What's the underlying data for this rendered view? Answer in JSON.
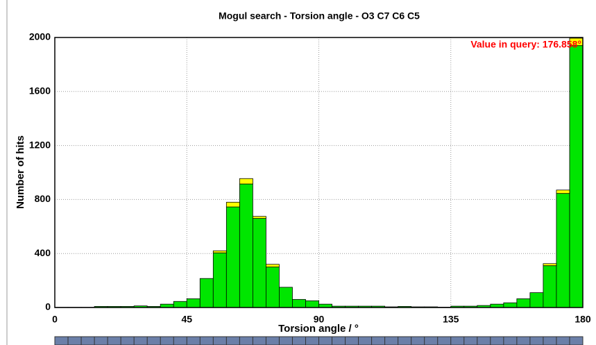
{
  "chart_data": {
    "type": "histogram",
    "title": "Mogul search - Torsion angle - O3 C7 C6 C5",
    "xlabel": "Torsion angle / °",
    "ylabel": "Number of hits",
    "annotation": "Value in query: 176.858°",
    "bins": [
      0,
      4.5,
      9,
      13.5,
      18,
      22.5,
      27,
      31.5,
      36,
      40.5,
      45,
      49.5,
      54,
      58.5,
      63,
      67.5,
      72,
      76.5,
      81,
      85.5,
      90,
      94.5,
      99,
      103.5,
      108,
      112.5,
      117,
      121.5,
      126,
      130.5,
      135,
      139.5,
      144,
      148.5,
      153,
      157.5,
      162,
      166.5,
      171,
      175.5,
      180
    ],
    "series": [
      {
        "color": "#00e600",
        "values": [
          2,
          2,
          2,
          8,
          8,
          8,
          12,
          8,
          25,
          45,
          65,
          215,
          405,
          745,
          915,
          660,
          300,
          150,
          60,
          50,
          25,
          10,
          10,
          10,
          10,
          5,
          8,
          5,
          5,
          3,
          10,
          10,
          15,
          25,
          35,
          65,
          110,
          310,
          845,
          1940
        ]
      },
      {
        "color": "#ffff00",
        "values": [
          0,
          0,
          0,
          0,
          0,
          0,
          0,
          0,
          0,
          0,
          0,
          0,
          15,
          35,
          40,
          15,
          20,
          0,
          0,
          0,
          0,
          0,
          0,
          0,
          0,
          0,
          0,
          0,
          0,
          0,
          0,
          0,
          0,
          0,
          0,
          0,
          0,
          15,
          25,
          55
        ]
      }
    ],
    "xlim": [
      0,
      180
    ],
    "xticks": [
      0,
      45,
      90,
      135,
      180
    ],
    "ylim": [
      0,
      2000
    ],
    "yticks": [
      0,
      400,
      800,
      1200,
      1600,
      2000
    ],
    "grid": true
  }
}
